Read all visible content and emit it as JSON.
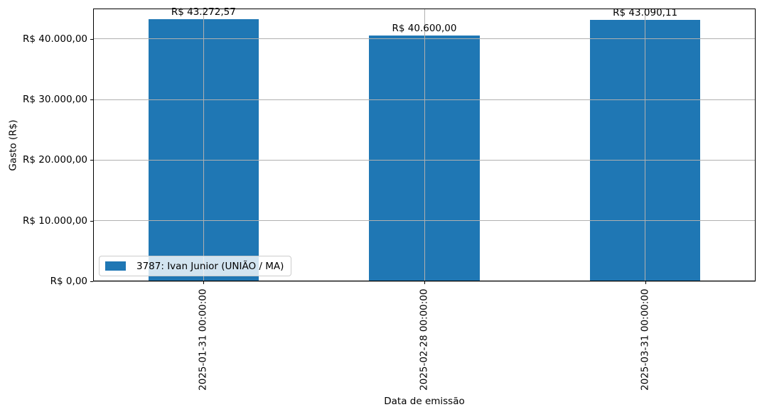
{
  "chart_data": {
    "type": "bar",
    "title": "",
    "xlabel": "Data de emissão",
    "ylabel": "Gasto (R$)",
    "categories": [
      "2025-01-31 00:00:00",
      "2025-02-28 00:00:00",
      "2025-03-31 00:00:00"
    ],
    "series": [
      {
        "name": "3787: Ivan Junior (UNIÃO / MA)",
        "values": [
          43272.57,
          40600.0,
          43090.11
        ],
        "color": "#1f77b4"
      }
    ],
    "bar_value_labels": [
      "R$ 43.272,57",
      "R$ 40.600,00",
      "R$ 43.090,11"
    ],
    "yticks": [
      {
        "value": 0,
        "label": "R$ 0,00"
      },
      {
        "value": 10000,
        "label": "R$ 10.000,00"
      },
      {
        "value": 20000,
        "label": "R$ 20.000,00"
      },
      {
        "value": 30000,
        "label": "R$ 30.000,00"
      },
      {
        "value": 40000,
        "label": "R$ 40.000,00"
      }
    ],
    "ylim": [
      0,
      45000
    ],
    "grid": true,
    "grid_color": "#b0b0b0",
    "bar_width_fraction": 0.5,
    "legend_position": "lower left"
  }
}
